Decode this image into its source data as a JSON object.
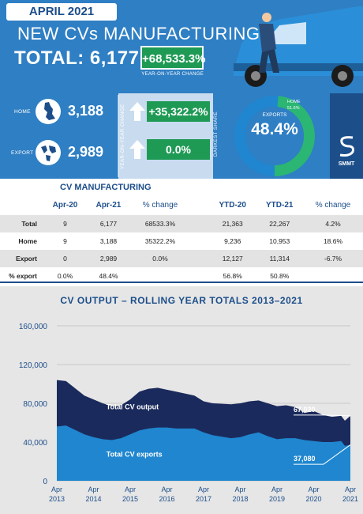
{
  "header": {
    "month_label": "APRIL 2021",
    "headline": "NEW CVs MANUFACTURING",
    "total_label": "TOTAL: 6,177",
    "total_change": "+68,533.3%",
    "yoy_note": "YEAR-ON-YEAR CHANGE"
  },
  "split": {
    "home_label": "HOME",
    "home_value": "3,188",
    "home_change": "+35,322.2%",
    "export_label": "EXPORT",
    "export_value": "2,989",
    "export_change": "0.0%",
    "yoy_vertical": "YEAR-ON-YEAR CHANGE",
    "darkest_share": "DARKEST SHARE",
    "donut_export_label": "EXPORTS",
    "donut_export_pct": "48.4%",
    "donut_home_label": "HOME",
    "donut_home_pct": "51.6%",
    "donut_export_share": 48.4,
    "brand": "SMMT"
  },
  "table": {
    "title": "CV MANUFACTURING",
    "headers": [
      "Apr-20",
      "Apr-21",
      "% change",
      "YTD-20",
      "YTD-21",
      "% change"
    ],
    "rows": [
      {
        "label": "Total",
        "cells": [
          "9",
          "6,177",
          "68533.3%",
          "21,363",
          "22,267",
          "4.2%"
        ]
      },
      {
        "label": "Home",
        "cells": [
          "9",
          "3,188",
          "35322.2%",
          "9,236",
          "10,953",
          "18.6%"
        ]
      },
      {
        "label": "Export",
        "cells": [
          "0",
          "2,989",
          "0.0%",
          "12,127",
          "11,314",
          "-6.7%"
        ]
      },
      {
        "label": "% export",
        "cells": [
          "0.0%",
          "48.4%",
          "",
          "56.8%",
          "50.8%",
          ""
        ]
      }
    ]
  },
  "chart_data": {
    "type": "area",
    "title": "CV OUTPUT – ROLLING YEAR TOTALS 2013–2021",
    "ylim": [
      0,
      160000
    ],
    "yticks": [
      "0",
      "40,000",
      "80,000",
      "120,000",
      "160,000"
    ],
    "ytick_values": [
      0,
      40000,
      80000,
      120000,
      160000
    ],
    "xticks": [
      {
        "top": "Apr",
        "bottom": "2013"
      },
      {
        "top": "Apr",
        "bottom": "2014"
      },
      {
        "top": "Apr",
        "bottom": "2015"
      },
      {
        "top": "Apr",
        "bottom": "2016"
      },
      {
        "top": "Apr",
        "bottom": "2017"
      },
      {
        "top": "Apr",
        "bottom": "2018"
      },
      {
        "top": "Apr",
        "bottom": "2019"
      },
      {
        "top": "Apr",
        "bottom": "2020"
      },
      {
        "top": "Apr",
        "bottom": "2021"
      }
    ],
    "x": [
      2013.25,
      2013.5,
      2014.0,
      2014.25,
      2014.5,
      2014.75,
      2015.0,
      2015.25,
      2015.5,
      2015.75,
      2016.0,
      2016.25,
      2016.5,
      2017.0,
      2017.25,
      2017.5,
      2018.0,
      2018.25,
      2018.5,
      2018.75,
      2019.0,
      2019.25,
      2019.5,
      2019.75,
      2020.0,
      2020.25,
      2020.5,
      2020.75,
      2021.0,
      2021.1,
      2021.25
    ],
    "series": [
      {
        "name": "Total CV output",
        "color": "#1b2a5c",
        "values": [
          104000,
          103000,
          88000,
          84000,
          80000,
          77000,
          78000,
          84000,
          92000,
          95000,
          96000,
          94000,
          92000,
          88000,
          82000,
          80000,
          79000,
          80000,
          82000,
          83000,
          80000,
          77000,
          78000,
          76000,
          70000,
          72000,
          68000,
          66000,
          67000,
          62000,
          67020
        ]
      },
      {
        "name": "Total CV exports",
        "color": "#1f86cf",
        "values": [
          56000,
          57000,
          48000,
          45000,
          43000,
          42000,
          44000,
          48000,
          52000,
          54000,
          55000,
          55000,
          54000,
          54000,
          50000,
          47000,
          44000,
          45000,
          48000,
          50000,
          46000,
          43000,
          44000,
          44000,
          42000,
          41000,
          40000,
          40000,
          41000,
          36000,
          37080
        ]
      }
    ],
    "end_labels": [
      "67,020",
      "37,080"
    ]
  }
}
